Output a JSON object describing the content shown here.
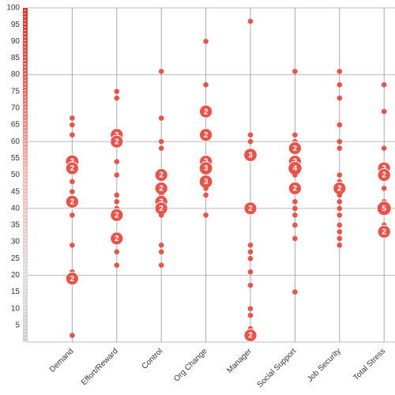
{
  "chart_data": {
    "type": "dotplot",
    "color": "#e8534a",
    "ylim": [
      0,
      100
    ],
    "yticks": [
      5,
      10,
      15,
      20,
      25,
      30,
      35,
      40,
      45,
      50,
      55,
      60,
      65,
      70,
      75,
      80,
      85,
      90,
      95,
      100
    ],
    "gridlines": [
      20,
      40,
      60,
      80,
      100
    ],
    "groups": [
      {
        "name": "Demand",
        "values": [
          67,
          65,
          62,
          54,
          52,
          48,
          45,
          42,
          38,
          29,
          21,
          19,
          2
        ],
        "counts": [
          null,
          null,
          null,
          3,
          2,
          null,
          null,
          2,
          null,
          null,
          null,
          2,
          null
        ]
      },
      {
        "name": "Effort/Reward",
        "values": [
          75,
          73,
          62,
          60,
          54,
          50,
          44,
          42,
          40,
          38,
          31,
          27,
          23
        ],
        "counts": [
          null,
          null,
          2,
          2,
          null,
          null,
          null,
          null,
          null,
          2,
          2,
          null,
          null
        ]
      },
      {
        "name": "Control",
        "values": [
          81,
          67,
          60,
          58,
          50,
          46,
          44,
          42,
          40,
          38,
          29,
          27,
          23
        ],
        "counts": [
          null,
          null,
          null,
          null,
          2,
          2,
          null,
          2,
          2,
          null,
          null,
          null,
          null
        ]
      },
      {
        "name": "Org Change",
        "values": [
          90,
          77,
          69,
          62,
          54,
          52,
          48,
          46,
          44,
          38
        ],
        "counts": [
          null,
          null,
          2,
          2,
          2,
          3,
          3,
          null,
          null,
          null
        ]
      },
      {
        "name": "Manager",
        "values": [
          96,
          62,
          60,
          56,
          40,
          29,
          27,
          25,
          21,
          17,
          10,
          8,
          4,
          2
        ],
        "counts": [
          null,
          null,
          null,
          3,
          2,
          null,
          null,
          null,
          null,
          null,
          null,
          null,
          null,
          2
        ]
      },
      {
        "name": "Social Support",
        "values": [
          81,
          62,
          60,
          58,
          54,
          52,
          50,
          46,
          42,
          40,
          38,
          35,
          31,
          15
        ],
        "counts": [
          null,
          null,
          null,
          2,
          2,
          4,
          null,
          2,
          null,
          null,
          null,
          null,
          null,
          null
        ]
      },
      {
        "name": "Job Security",
        "values": [
          81,
          77,
          73,
          65,
          60,
          58,
          50,
          48,
          46,
          44,
          42,
          40,
          38,
          35,
          33,
          31,
          29
        ],
        "counts": [
          null,
          null,
          null,
          null,
          null,
          null,
          null,
          null,
          2,
          null,
          null,
          null,
          null,
          null,
          null,
          null,
          null
        ]
      },
      {
        "name": "Total Stress",
        "values": [
          77,
          69,
          58,
          52,
          50,
          46,
          42,
          40,
          35,
          33
        ],
        "counts": [
          null,
          null,
          null,
          2,
          2,
          null,
          null,
          5,
          null,
          2
        ]
      }
    ]
  }
}
